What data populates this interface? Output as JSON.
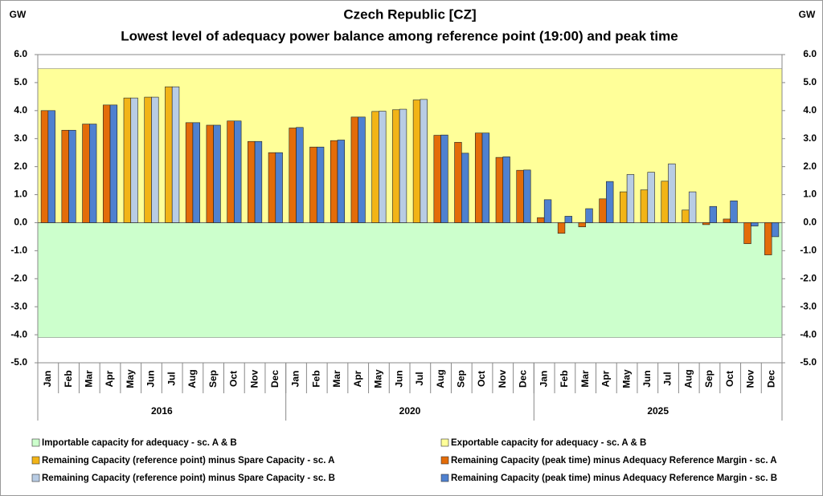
{
  "chart_data": {
    "type": "bar",
    "title": "Czech Republic [CZ]",
    "subtitle": "Lowest level of adequacy power balance among reference point (19:00) and peak time",
    "ylabel": "GW",
    "y2label": "GW",
    "groups": [
      "2016",
      "2020",
      "2025"
    ],
    "categories": [
      "Jan",
      "Feb",
      "Mar",
      "Apr",
      "May",
      "Jun",
      "Jul",
      "Aug",
      "Sep",
      "Oct",
      "Nov",
      "Dec",
      "Jan",
      "Feb",
      "Mar",
      "Apr",
      "May",
      "Jun",
      "Jul",
      "Aug",
      "Sep",
      "Oct",
      "Nov",
      "Dec",
      "Jan",
      "Feb",
      "Mar",
      "Apr",
      "May",
      "Jun",
      "Jul",
      "Aug",
      "Sep",
      "Oct",
      "Nov",
      "Dec"
    ],
    "bands": [
      {
        "name": "Importable capacity for adequacy - sc. A & B",
        "color": "#ccffcc",
        "value": -4.1
      },
      {
        "name": "Exportable capacity for adequacy - sc. A & B",
        "color": "#ffff99",
        "value": 5.5
      }
    ],
    "series": [
      {
        "name": "Remaining Capacity (reference point) minus Spare Capacity - sc. A",
        "color": "#f2b417",
        "values": [
          null,
          null,
          null,
          null,
          4.45,
          4.48,
          4.85,
          null,
          null,
          null,
          null,
          null,
          null,
          null,
          null,
          null,
          3.97,
          4.03,
          4.38,
          null,
          null,
          null,
          null,
          null,
          null,
          null,
          null,
          null,
          1.1,
          1.17,
          1.48,
          0.45,
          null,
          null,
          null,
          null
        ]
      },
      {
        "name": "Remaining Capacity (peak time) minus Adequacy Reference Margin - sc. A",
        "color": "#e36c09",
        "values": [
          4.0,
          3.3,
          3.52,
          4.2,
          null,
          null,
          null,
          3.57,
          3.48,
          3.63,
          2.9,
          2.5,
          3.38,
          2.7,
          2.93,
          3.77,
          null,
          null,
          null,
          3.12,
          2.87,
          3.2,
          2.33,
          1.87,
          0.18,
          -0.38,
          -0.15,
          0.85,
          null,
          null,
          null,
          null,
          -0.07,
          0.13,
          -0.75,
          -1.15
        ]
      },
      {
        "name": "Remaining Capacity (reference point) minus Spare Capacity - sc. B",
        "color": "#b8cce4",
        "values": [
          null,
          null,
          null,
          null,
          4.45,
          4.48,
          4.85,
          null,
          null,
          null,
          null,
          null,
          null,
          null,
          null,
          null,
          3.98,
          4.05,
          4.4,
          null,
          null,
          null,
          null,
          null,
          null,
          null,
          null,
          null,
          1.72,
          1.8,
          2.1,
          1.1,
          null,
          null,
          null,
          null
        ]
      },
      {
        "name": "Remaining Capacity (peak time) minus Adequacy Reference Margin - sc. B",
        "color": "#4f81d0",
        "values": [
          4.0,
          3.3,
          3.52,
          4.2,
          null,
          null,
          null,
          3.57,
          3.48,
          3.63,
          2.9,
          2.5,
          3.4,
          2.7,
          2.95,
          3.77,
          null,
          null,
          null,
          3.13,
          2.48,
          3.2,
          2.35,
          1.88,
          0.82,
          0.23,
          0.5,
          1.47,
          null,
          null,
          null,
          null,
          0.58,
          0.78,
          -0.12,
          -0.5
        ]
      }
    ],
    "ylim": [
      -5,
      6
    ],
    "yticks": [
      {
        "value": -5,
        "label": "-5.0"
      },
      {
        "value": -4,
        "label": "-4.0"
      },
      {
        "value": -3,
        "label": "-3.0"
      },
      {
        "value": -2,
        "label": "-2.0"
      },
      {
        "value": -1,
        "label": "-1.0"
      },
      {
        "value": 0,
        "label": "0.0"
      },
      {
        "value": 1,
        "label": "1.0"
      },
      {
        "value": 2,
        "label": "2.0"
      },
      {
        "value": 3,
        "label": "3.0"
      },
      {
        "value": 4,
        "label": "4.0"
      },
      {
        "value": 5,
        "label": "5.0"
      },
      {
        "value": 6,
        "label": "6.0"
      }
    ],
    "y2lim": [
      -5,
      6
    ],
    "y2ticks": [
      {
        "value": -5,
        "label": "-5.0"
      },
      {
        "value": -4,
        "label": "-4.0"
      },
      {
        "value": -3,
        "label": "-3.0"
      },
      {
        "value": -2,
        "label": "-2.0"
      },
      {
        "value": -1,
        "label": "-1.0"
      },
      {
        "value": 0,
        "label": "0.0"
      },
      {
        "value": 1,
        "label": "1.0"
      },
      {
        "value": 2,
        "label": "2.0"
      },
      {
        "value": 3,
        "label": "3.0"
      },
      {
        "value": 4,
        "label": "4.0"
      },
      {
        "value": 5,
        "label": "5.0"
      },
      {
        "value": 6,
        "label": "6.0"
      }
    ],
    "grid": false
  }
}
